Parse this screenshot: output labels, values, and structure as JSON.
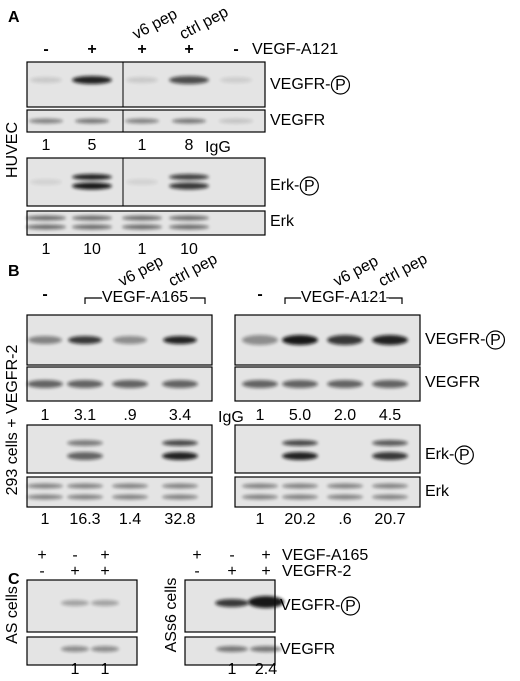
{
  "panel_a": {
    "label": "A",
    "treatment_signs": [
      "-",
      "+",
      "+",
      "+",
      "-"
    ],
    "peptides": [
      "v6 pep",
      "ctrl pep"
    ],
    "treatment": "VEGF-A121",
    "blot_labels": [
      {
        "text": "VEGFR-",
        "marker": "P"
      },
      {
        "text": "VEGFR"
      },
      {
        "text": "Erk-",
        "marker": "P"
      },
      {
        "text": "Erk"
      }
    ],
    "cell_label": "HUVEC",
    "vegfr_ratios": [
      "1",
      "5",
      "1",
      "8"
    ],
    "control": "IgG",
    "erk_ratios": [
      "1",
      "10",
      "1",
      "10"
    ]
  },
  "panel_b": {
    "label": "B",
    "left_group": {
      "dash": "-",
      "treatment": "VEGF-A165",
      "peptides": [
        "v6 pep",
        "ctrl pep"
      ],
      "vegfr_ratios": [
        "1",
        "3.1",
        ".9",
        "3.4"
      ],
      "erk_ratios": [
        "1",
        "16.3",
        "1.4",
        "32.8"
      ]
    },
    "right_group": {
      "dash": "-",
      "treatment": "VEGF-A121",
      "peptides": [
        "v6 pep",
        "ctrl pep"
      ],
      "vegfr_ratios": [
        "1",
        "5.0",
        "2.0",
        "4.5"
      ],
      "erk_ratios": [
        "1",
        "20.2",
        ".6",
        "20.7"
      ]
    },
    "control": "IgG",
    "cell_label": "293 cells + VEGFR-2",
    "blot_labels": [
      {
        "text": "VEGFR-",
        "marker": "P"
      },
      {
        "text": "VEGFR"
      },
      {
        "text": "Erk-",
        "marker": "P"
      },
      {
        "text": "Erk"
      }
    ]
  },
  "panel_c": {
    "label": "C",
    "rows": [
      {
        "name": "VEGF-A165",
        "left": [
          "+",
          "-",
          "+"
        ],
        "right": [
          "+",
          "-",
          "+"
        ]
      },
      {
        "name": "VEGFR-2",
        "left": [
          "-",
          "+",
          "+"
        ],
        "right": [
          "-",
          "+",
          "+"
        ]
      }
    ],
    "left_cells": "AS cells",
    "right_cells": "ASs6 cells",
    "left_ratios": [
      "1",
      "1"
    ],
    "right_ratios": [
      "1",
      "2.4"
    ],
    "blot_labels": [
      {
        "text": "VEGFR-",
        "marker": "P"
      },
      {
        "text": "VEGFR"
      }
    ]
  }
}
